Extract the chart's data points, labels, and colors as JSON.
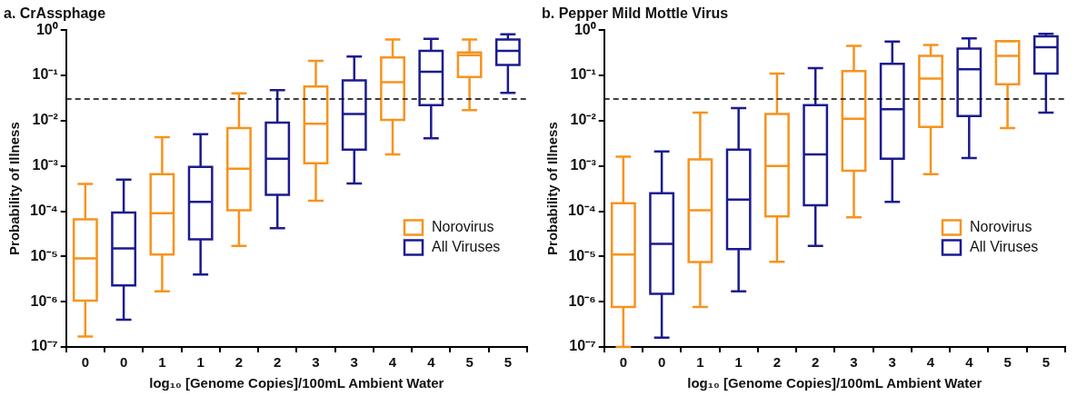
{
  "chart_data": [
    {
      "type": "box",
      "title": "a. CrAssphage",
      "xlabel": "log₁₀ [Genome Copies]/100mL Ambient Water",
      "ylabel": "Probability of Illness",
      "categories": [
        "0",
        "0",
        "1",
        "1",
        "2",
        "2",
        "3",
        "3",
        "4",
        "4",
        "5",
        "5"
      ],
      "log": true,
      "ylim": [
        1e-07,
        1
      ],
      "yticks": [
        {
          "value": 1e-07,
          "label": "10⁻⁷"
        },
        {
          "value": 1e-06,
          "label": "10⁻⁶"
        },
        {
          "value": 1e-05,
          "label": "10⁻⁵"
        },
        {
          "value": 0.0001,
          "label": "10⁻⁴"
        },
        {
          "value": 0.001,
          "label": "10⁻³"
        },
        {
          "value": 0.01,
          "label": "10⁻²"
        },
        {
          "value": 0.1,
          "label": "10⁻¹"
        },
        {
          "value": 1,
          "label": "10⁰"
        }
      ],
      "legend": "bottom right",
      "ref_lines": [
        {
          "axis": "y",
          "value": 0.03,
          "color": "#000000",
          "line_style": "dashed"
        }
      ],
      "series": [
        {
          "name": "Norovirus",
          "color": "#f7931e",
          "boxes": [
            {
              "low": 1.7e-07,
              "q1": 1.05e-06,
              "median": 9e-06,
              "q3": 6.6e-05,
              "high": 0.0004
            },
            null,
            {
              "low": 1.7e-06,
              "q1": 1.1e-05,
              "median": 9e-05,
              "q3": 0.00066,
              "high": 0.0043
            },
            null,
            {
              "low": 1.7e-05,
              "q1": 0.000105,
              "median": 0.00087,
              "q3": 0.0069,
              "high": 0.04
            },
            null,
            {
              "low": 0.00017,
              "q1": 0.00115,
              "median": 0.0085,
              "q3": 0.057,
              "high": 0.21
            },
            null,
            {
              "low": 0.0018,
              "q1": 0.0104,
              "median": 0.071,
              "q3": 0.25,
              "high": 0.62
            },
            null,
            {
              "low": 0.017,
              "q1": 0.092,
              "median": 0.28,
              "q3": 0.32,
              "high": 0.62
            },
            null
          ]
        },
        {
          "name": "All Viruses",
          "color": "#1b1b8f",
          "boxes": [
            null,
            {
              "low": 4e-07,
              "q1": 2.3e-06,
              "median": 1.5e-05,
              "q3": 9.3e-05,
              "high": 0.0005
            },
            null,
            {
              "low": 4e-06,
              "q1": 2.4e-05,
              "median": 0.00016,
              "q3": 0.00095,
              "high": 0.005
            },
            null,
            {
              "low": 4.2e-05,
              "q1": 0.00023,
              "median": 0.00145,
              "q3": 0.0091,
              "high": 0.047
            },
            null,
            {
              "low": 0.00041,
              "q1": 0.0023,
              "median": 0.014,
              "q3": 0.078,
              "high": 0.26
            },
            null,
            {
              "low": 0.0041,
              "q1": 0.022,
              "median": 0.12,
              "q3": 0.35,
              "high": 0.64
            },
            null,
            {
              "low": 0.041,
              "q1": 0.17,
              "median": 0.35,
              "q3": 0.62,
              "high": 0.81
            }
          ]
        }
      ]
    },
    {
      "type": "box",
      "title": "b. Pepper Mild Mottle Virus",
      "xlabel": "log₁₀ [Genome Copies]/100mL Ambient Water",
      "ylabel": "Probability of Illness",
      "categories": [
        "0",
        "0",
        "1",
        "1",
        "2",
        "2",
        "3",
        "3",
        "4",
        "4",
        "5",
        "5"
      ],
      "log": true,
      "ylim": [
        1e-07,
        1
      ],
      "yticks": [
        {
          "value": 1e-07,
          "label": "10⁻⁷"
        },
        {
          "value": 1e-06,
          "label": "10⁻⁶"
        },
        {
          "value": 1e-05,
          "label": "10⁻⁵"
        },
        {
          "value": 0.0001,
          "label": "10⁻⁴"
        },
        {
          "value": 0.001,
          "label": "10⁻³"
        },
        {
          "value": 0.01,
          "label": "10⁻²"
        },
        {
          "value": 0.1,
          "label": "10⁻¹"
        },
        {
          "value": 1,
          "label": "10⁰"
        }
      ],
      "legend": "bottom right",
      "ref_lines": [
        {
          "axis": "y",
          "value": 0.03,
          "color": "#000000",
          "line_style": "dashed"
        }
      ],
      "series": [
        {
          "name": "Norovirus",
          "color": "#f7931e",
          "boxes": [
            {
              "low": 1e-07,
              "q1": 7.6e-07,
              "median": 1.1e-05,
              "q3": 0.00015,
              "high": 0.0016
            },
            null,
            {
              "low": 7.6e-07,
              "q1": 7.5e-06,
              "median": 0.000105,
              "q3": 0.0014,
              "high": 0.015
            },
            null,
            {
              "low": 7.6e-06,
              "q1": 7.7e-05,
              "median": 0.001,
              "q3": 0.014,
              "high": 0.11
            },
            null,
            {
              "low": 7.3e-05,
              "q1": 0.00078,
              "median": 0.011,
              "q3": 0.124,
              "high": 0.45
            },
            null,
            {
              "low": 0.00066,
              "q1": 0.0073,
              "median": 0.085,
              "q3": 0.27,
              "high": 0.47
            },
            null,
            {
              "low": 0.0069,
              "q1": 0.064,
              "median": 0.27,
              "q3": 0.57,
              "high": 0.57
            },
            null
          ]
        },
        {
          "name": "All Viruses",
          "color": "#1b1b8f",
          "boxes": [
            null,
            {
              "low": 1.6e-07,
              "q1": 1.5e-06,
              "median": 1.9e-05,
              "q3": 0.00025,
              "high": 0.0021
            },
            null,
            {
              "low": 1.7e-06,
              "q1": 1.45e-05,
              "median": 0.00018,
              "q3": 0.0023,
              "high": 0.019
            },
            null,
            {
              "low": 1.7e-05,
              "q1": 0.000135,
              "median": 0.0018,
              "q3": 0.022,
              "high": 0.145
            },
            null,
            {
              "low": 0.00016,
              "q1": 0.00144,
              "median": 0.018,
              "q3": 0.18,
              "high": 0.56
            },
            null,
            {
              "low": 0.0015,
              "q1": 0.0126,
              "median": 0.137,
              "q3": 0.39,
              "high": 0.66
            },
            null,
            {
              "low": 0.015,
              "q1": 0.11,
              "median": 0.42,
              "q3": 0.73,
              "high": 0.83
            }
          ]
        }
      ]
    }
  ]
}
